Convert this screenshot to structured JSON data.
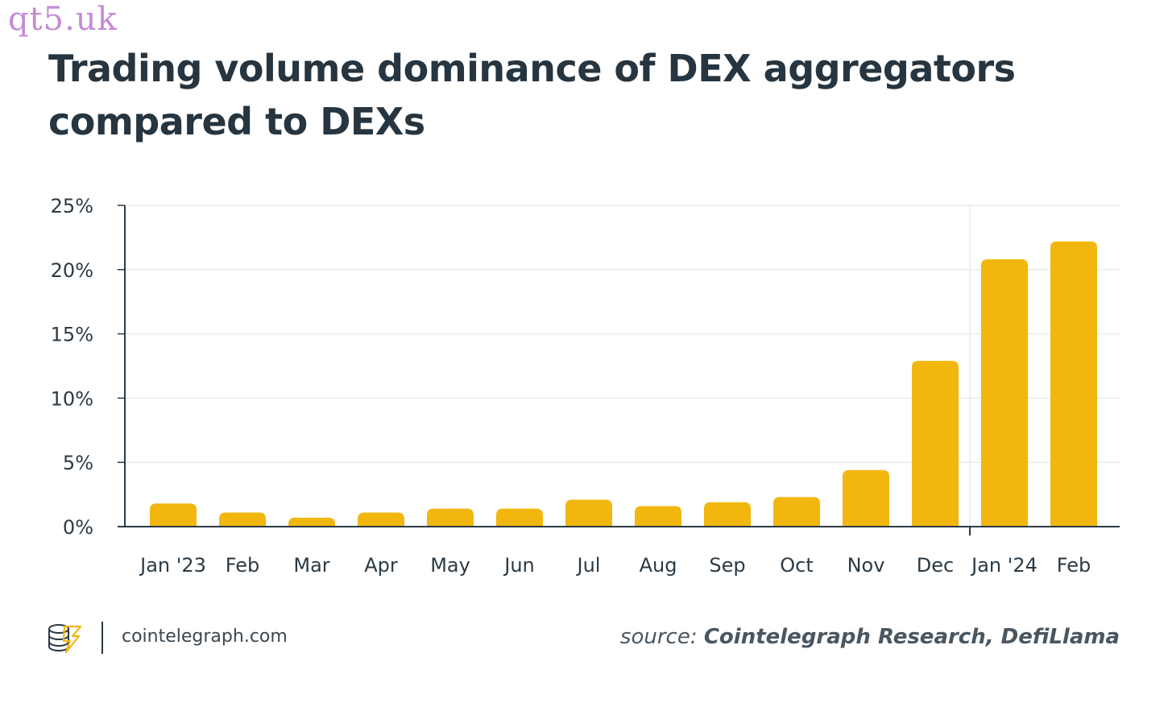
{
  "watermark": "qt5.uk",
  "title": "Trading volume dominance of DEX aggregators compared to DEXs",
  "footer": {
    "site": "cointelegraph.com",
    "source_prefix": "source: ",
    "source_name": "Cointelegraph Research, DefiLlama",
    "logo_icon": "cointelegraph-logo-icon"
  },
  "colors": {
    "bar": "#F2B70F",
    "axis": "#2b3a44",
    "grid": "#ececec",
    "text": "#2b3a44"
  },
  "chart_data": {
    "type": "bar",
    "title": "Trading volume dominance of DEX aggregators compared to DEXs",
    "xlabel": "",
    "ylabel": "",
    "categories": [
      "Jan '23",
      "Feb",
      "Mar",
      "Apr",
      "May",
      "Jun",
      "Jul",
      "Aug",
      "Sep",
      "Oct",
      "Nov",
      "Dec",
      "Jan '24",
      "Feb"
    ],
    "values": [
      1.8,
      1.1,
      0.7,
      1.1,
      1.4,
      1.4,
      2.1,
      1.6,
      1.9,
      2.3,
      4.4,
      12.9,
      20.8,
      22.2
    ],
    "unit": "%",
    "ylim": [
      0,
      25
    ],
    "yticks": [
      0,
      5,
      10,
      15,
      20,
      25
    ],
    "ytick_labels": [
      "0%",
      "5%",
      "10%",
      "15%",
      "20%",
      "25%"
    ],
    "grid": true,
    "legend": "none",
    "year_divider_after_category": "Dec"
  }
}
